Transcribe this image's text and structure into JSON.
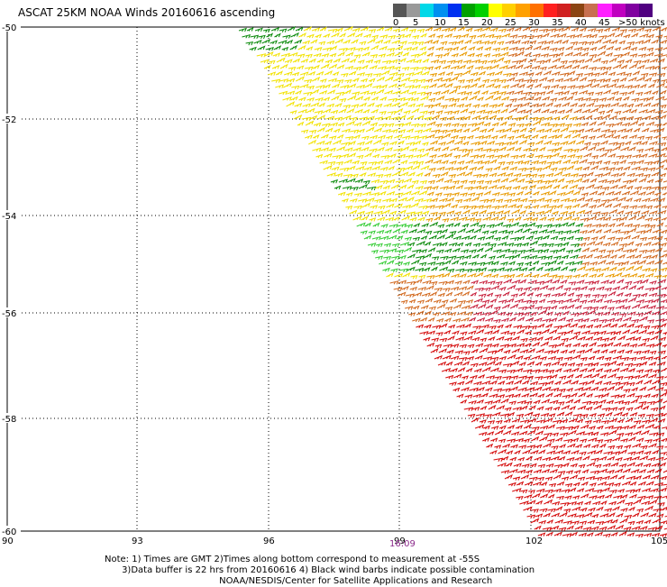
{
  "title": "ASCAT 25KM NOAA Winds 20160616 ascending",
  "legend": {
    "labels": [
      "0",
      "5",
      "10",
      "15",
      "20",
      "25",
      "30",
      "35",
      "40",
      "45",
      ">50 knots"
    ],
    "colors": [
      "#555555",
      "#999999",
      "#00d8e8",
      "#0090f0",
      "#0030f0",
      "#00a000",
      "#00d000",
      "#ffff00",
      "#ffd000",
      "#ffa000",
      "#ff7000",
      "#ff2020",
      "#d02020",
      "#8b4513",
      "#c87050",
      "#ff20ff",
      "#c000c0",
      "#8000a0",
      "#500080"
    ]
  },
  "axes": {
    "lon_ticks": [
      "90",
      "93",
      "96",
      "99",
      "102",
      "105"
    ],
    "lat_ticks": [
      "-50",
      "-52",
      "-54",
      "-56",
      "-58",
      "-60"
    ]
  },
  "time_label": "16:09",
  "notes": [
    "Note: 1) Times are GMT 2)Times along bottom correspond to measurement at -55S",
    "      3)Data buffer is 22 hrs from 20160616 4) Black wind barbs indicate possible contamination",
    "                                        NOAA/NESDIS/Center for Satellite Applications and Research"
  ],
  "wind_colors": {
    "green": "#0b8a0b",
    "light_green": "#33cc33",
    "yellow": "#f2e200",
    "orange": "#e89a00",
    "dark_orange": "#d2691e",
    "red": "#d40a0a",
    "crimson": "#c8203c"
  }
}
